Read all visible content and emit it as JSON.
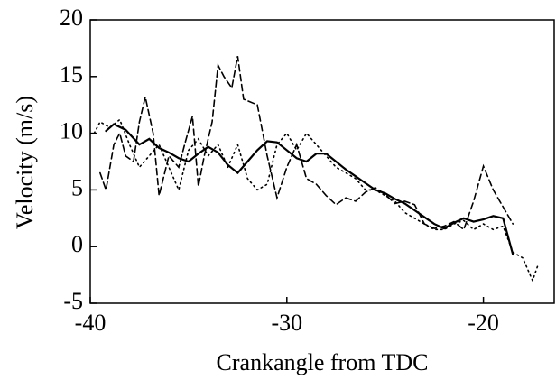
{
  "chart_data": {
    "type": "line",
    "xlabel": "Crankangle from TDC",
    "ylabel": "Velocity (m/s)",
    "xlim": [
      -40,
      -16.4
    ],
    "xticks": [
      -40,
      -30,
      -20
    ],
    "ylim": [
      -5,
      20
    ],
    "yticks": [
      -5,
      0,
      5,
      10,
      15,
      20
    ],
    "series": [
      {
        "color": "#000000",
        "style": "solid",
        "x": [
          -39.2,
          -38.8,
          -38.2,
          -37.5,
          -37,
          -36.5,
          -36,
          -35.5,
          -35,
          -34.5,
          -34,
          -33.5,
          -33,
          -32.5,
          -32,
          -31.5,
          -31,
          -30.5,
          -30,
          -29.5,
          -29,
          -28.5,
          -28,
          -27.5,
          -27,
          -26.5,
          -26,
          -25.5,
          -25,
          -24.5,
          -24,
          -23.5,
          -23,
          -22.5,
          -22,
          -21.5,
          -21,
          -20.5,
          -20,
          -19.5,
          -19,
          -18.5
        ],
        "values": [
          10.2,
          10.8,
          10.3,
          9,
          9.5,
          8.7,
          8.3,
          7.8,
          7.5,
          8.2,
          8.8,
          8.3,
          7.2,
          6.5,
          7.5,
          8.5,
          9.3,
          9.2,
          8.5,
          7.8,
          7.5,
          8.2,
          8.2,
          7.5,
          6.8,
          6.2,
          5.6,
          5,
          4.7,
          4.2,
          3.8,
          3.2,
          2.6,
          2,
          1.6,
          2.1,
          2.5,
          2.2,
          2.4,
          2.7,
          2.5,
          -0.7
        ]
      },
      {
        "color": "#000000",
        "style": "dashed",
        "x": [
          -39.5,
          -39.2,
          -38.8,
          -38.5,
          -38.2,
          -37.8,
          -37.5,
          -37.2,
          -36.8,
          -36.5,
          -36,
          -35.5,
          -35.2,
          -34.8,
          -34.5,
          -34.2,
          -33.8,
          -33.5,
          -33.2,
          -32.8,
          -32.5,
          -32.2,
          -31.5,
          -31,
          -30.5,
          -30,
          -29.5,
          -29,
          -28.5,
          -28,
          -27.5,
          -27,
          -26.5,
          -26,
          -25.5,
          -25,
          -24.5,
          -24,
          -23.5,
          -23,
          -22.5,
          -22,
          -21.5,
          -21,
          -20.5,
          -20,
          -19.5,
          -19,
          -18.5
        ],
        "values": [
          6.5,
          5,
          9,
          10,
          8,
          7.5,
          11,
          13.2,
          10,
          4.5,
          8,
          7,
          9,
          11.5,
          5.3,
          8,
          11,
          16,
          15,
          14,
          16.8,
          13,
          12.5,
          8,
          4.3,
          7,
          9,
          6,
          5.5,
          4.5,
          3.7,
          4.3,
          4,
          4.8,
          5.2,
          4.6,
          3.8,
          4,
          3.7,
          2,
          1.6,
          1.8,
          2.2,
          1.5,
          4,
          7.1,
          5,
          3.5,
          2
        ]
      },
      {
        "color": "#000000",
        "style": "dotted",
        "x": [
          -39.8,
          -39.5,
          -39,
          -38.5,
          -38,
          -37.5,
          -37,
          -36.5,
          -36,
          -35.5,
          -35,
          -34.5,
          -34,
          -33.5,
          -33,
          -32.5,
          -32,
          -31.5,
          -31,
          -30.5,
          -30,
          -29.5,
          -29,
          -28.5,
          -28,
          -27.5,
          -27,
          -26.5,
          -26,
          -25.5,
          -25,
          -24.5,
          -24,
          -23.5,
          -23,
          -22.5,
          -22,
          -21.5,
          -21,
          -20.5,
          -20,
          -19.5,
          -19,
          -18.5,
          -18,
          -17.5,
          -17.2
        ],
        "values": [
          10,
          11,
          10.5,
          11.2,
          9,
          7,
          8,
          9,
          7,
          5,
          8.5,
          9.5,
          8,
          9,
          7,
          9,
          6,
          5,
          5.5,
          9,
          10,
          8.5,
          10,
          9,
          8,
          7,
          6.5,
          6,
          5,
          5,
          4.5,
          4,
          3,
          2.5,
          2,
          1.5,
          1.5,
          2,
          2.3,
          1.5,
          2,
          1.5,
          1.8,
          -0.5,
          -1,
          -3,
          -1.5
        ]
      }
    ]
  }
}
